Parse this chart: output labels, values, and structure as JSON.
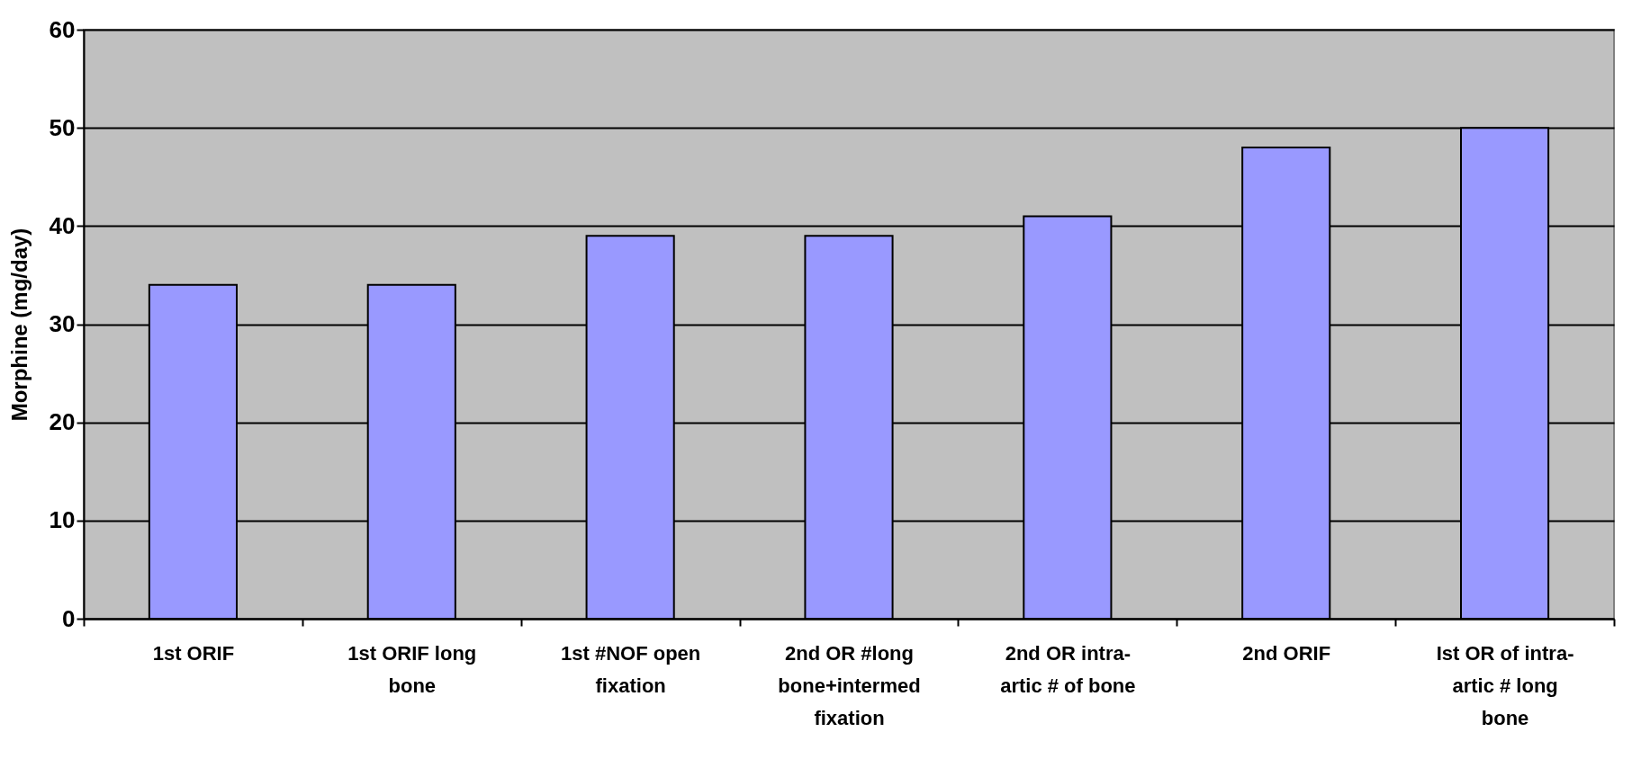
{
  "chart_data": {
    "type": "bar",
    "ylabel": "Morphine (mg/day)",
    "categories": [
      "1st ORIF",
      "1st ORIF long bone",
      "1st #NOF open fixation",
      "2nd OR #long bone+intermed fixation",
      "2nd OR intra-artic # of bone",
      "2nd ORIF",
      "Ist OR of intra-artic # long bone"
    ],
    "values": [
      34,
      34,
      39,
      39,
      41,
      48,
      50
    ],
    "color": "#9999ff",
    "ylim": [
      0,
      60
    ],
    "yticks": [
      0,
      10,
      20,
      30,
      40,
      50,
      60
    ],
    "grid": "y"
  }
}
